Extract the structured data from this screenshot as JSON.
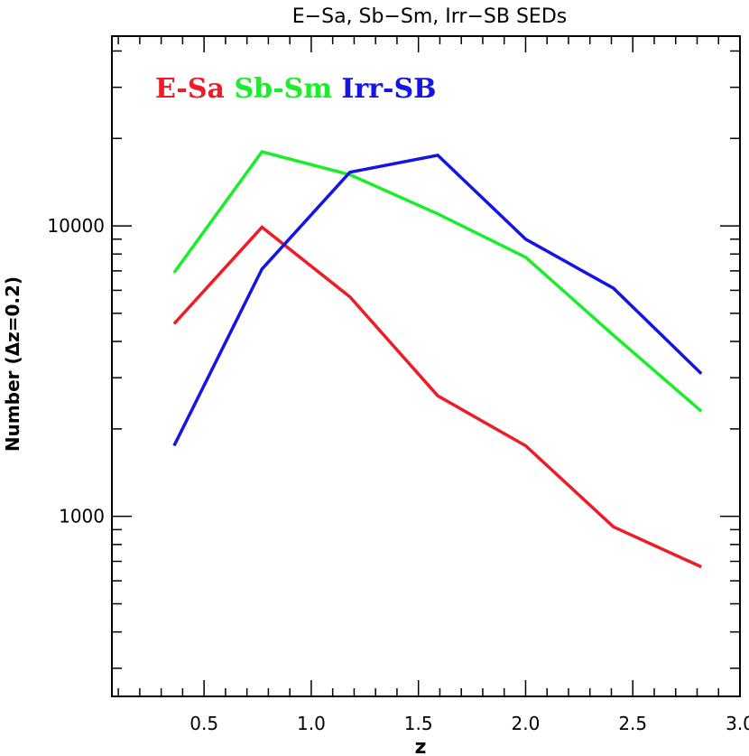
{
  "chart_data": {
    "type": "line",
    "title": "E−Sa, Sb−Sm, Irr−SB SEDs",
    "xlabel": "z",
    "ylabel": "Number (Δz=0.2)",
    "xlim": [
      0.07,
      3.0
    ],
    "ylim": [
      240,
      45000
    ],
    "yscale": "log",
    "x_ticks": [
      "0.5",
      "1.0",
      "1.5",
      "2.0",
      "2.5",
      "3.0"
    ],
    "y_ticks": [
      "1000",
      "10000"
    ],
    "x": [
      0.36,
      0.77,
      1.18,
      1.59,
      2.0,
      2.41,
      2.82
    ],
    "series": [
      {
        "name": "E-Sa",
        "color": "#ee1c25",
        "values": [
          4600,
          9900,
          5700,
          2600,
          1750,
          920,
          670
        ]
      },
      {
        "name": "Sb-Sm",
        "color": "#1aee2a",
        "values": [
          6900,
          18000,
          15000,
          11000,
          7800,
          4200,
          2300
        ]
      },
      {
        "name": "Irr-SB",
        "color": "#1414e6",
        "values": [
          1750,
          7100,
          15300,
          17500,
          9000,
          6100,
          3100
        ]
      }
    ]
  }
}
